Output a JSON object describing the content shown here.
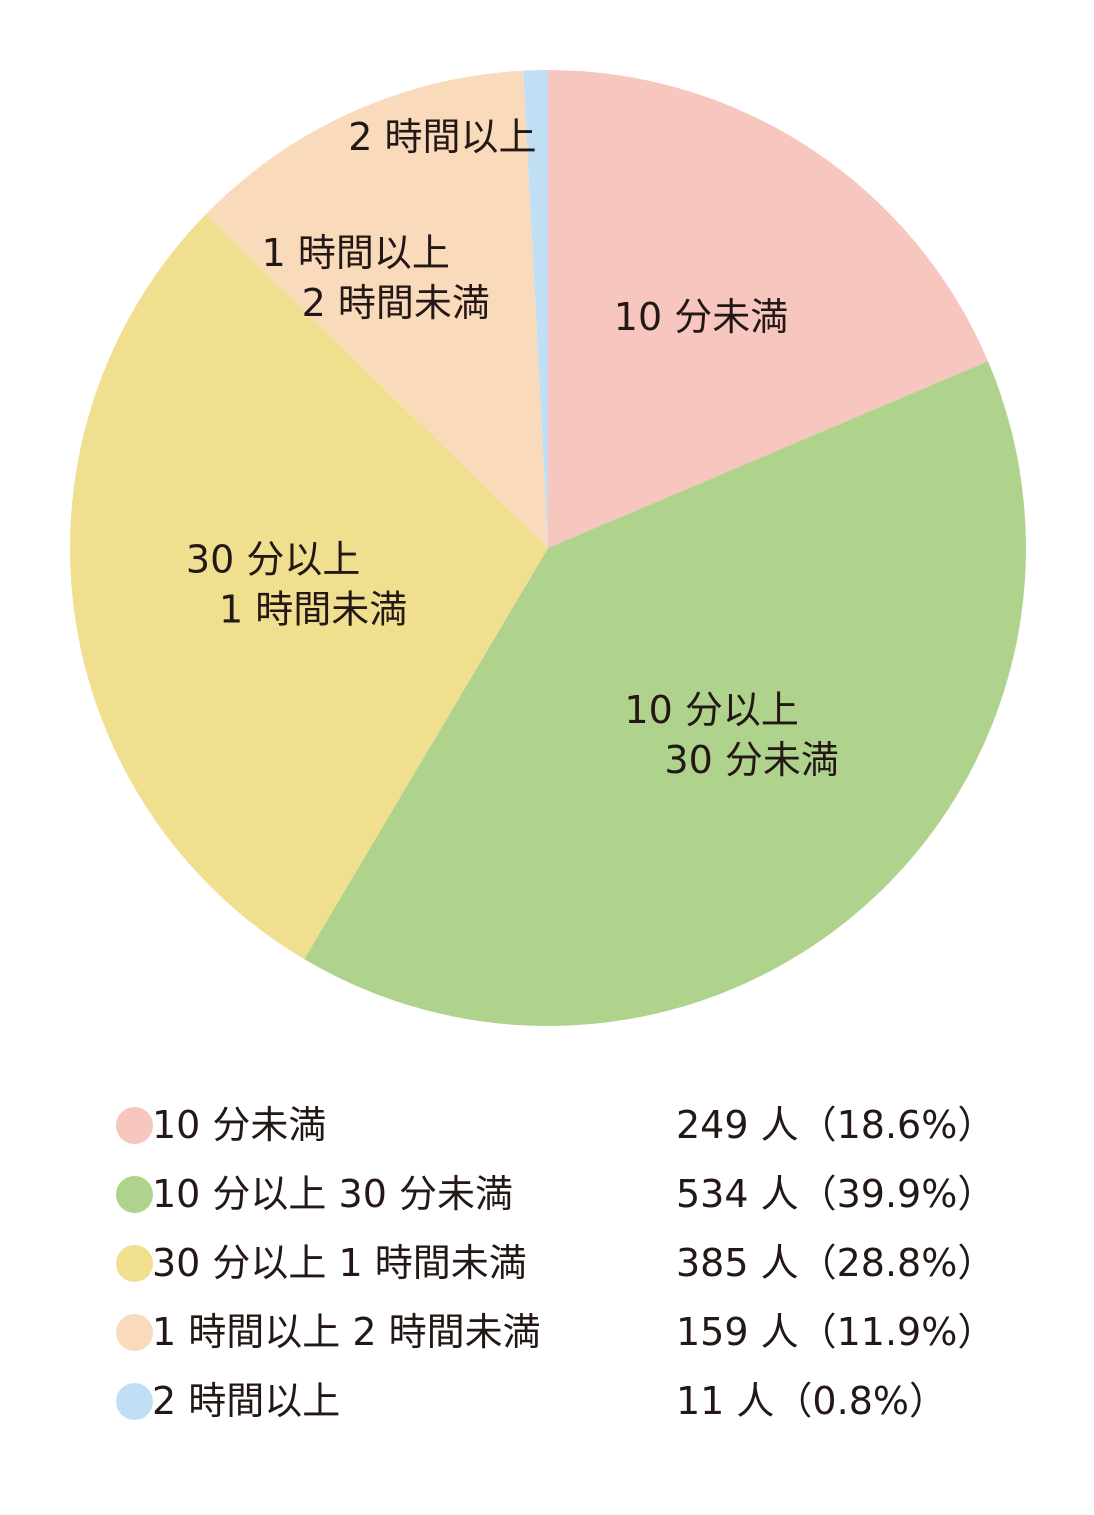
{
  "chart_data": {
    "type": "pie",
    "categories": [
      "10 分未満",
      "10 分以上 30 分未満",
      "30 分以上 1 時間未満",
      "1 時間以上 2 時間未満",
      "2 時間以上"
    ],
    "values": [
      249,
      534,
      385,
      159,
      11
    ],
    "percentages": [
      18.6,
      39.9,
      28.8,
      11.9,
      0.8
    ],
    "colors": [
      "#f6c6bf",
      "#afd38c",
      "#efdf8e",
      "#f9dbbc",
      "#c0dff5"
    ],
    "slice_labels": [
      [
        "10 分未満"
      ],
      [
        "10 分以上",
        "30 分未満"
      ],
      [
        "30 分以上",
        "1 時間未満"
      ],
      [
        "1 時間以上",
        "2 時間未満"
      ],
      [
        "2 時間以上"
      ]
    ],
    "legend": [
      {
        "label": "10 分未満",
        "value": "249 人（18.6%）"
      },
      {
        "label": "10 分以上 30 分未満",
        "value": "534 人（39.9%）"
      },
      {
        "label": "30 分以上 1 時間未満",
        "value": "385 人（28.8%）"
      },
      {
        "label": "1 時間以上 2 時間未満",
        "value": "159 人（11.9%）"
      },
      {
        "label": "2 時間以上",
        "value": "11 人（0.8%）"
      }
    ],
    "start": "12 o'clock",
    "direction": "clockwise",
    "legend_placement": "bottom"
  }
}
